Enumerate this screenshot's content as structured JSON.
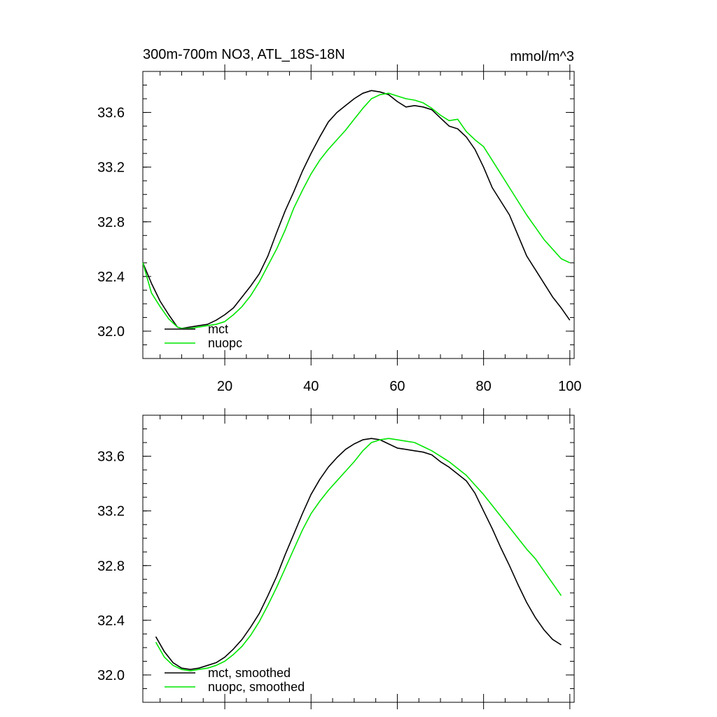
{
  "figure": {
    "title_left": "300m-700m NO3, ATL_18S-18N",
    "title_right": "mmol/m^3"
  },
  "chart_data": [
    {
      "type": "line",
      "title": "300m-700m NO3, ATL_18S-18N",
      "units": "mmol/m^3",
      "xlim": [
        1,
        101
      ],
      "ylim": [
        31.8,
        33.9
      ],
      "xticks": [
        20,
        40,
        60,
        80,
        100
      ],
      "xtick_labels": [
        "20",
        "40",
        "60",
        "80",
        "100"
      ],
      "yticks": [
        32.0,
        32.4,
        32.8,
        33.2,
        33.6
      ],
      "ytick_labels": [
        "32.0",
        "32.4",
        "32.8",
        "33.2",
        "33.6"
      ],
      "legend_position": "bottom-left",
      "series": [
        {
          "name": "mct",
          "color": "#000000",
          "x": [
            1,
            3,
            5,
            7,
            9,
            10,
            12,
            14,
            16,
            18,
            20,
            22,
            24,
            26,
            28,
            30,
            32,
            34,
            36,
            38,
            40,
            42,
            44,
            46,
            48,
            50,
            52,
            54,
            56,
            58,
            60,
            62,
            64,
            66,
            68,
            70,
            72,
            74,
            76,
            78,
            80,
            82,
            84,
            86,
            88,
            90,
            92,
            94,
            96,
            98,
            100
          ],
          "values": [
            32.5,
            32.35,
            32.22,
            32.12,
            32.03,
            32.02,
            32.03,
            32.04,
            32.05,
            32.08,
            32.12,
            32.17,
            32.25,
            32.33,
            32.42,
            32.55,
            32.72,
            32.88,
            33.02,
            33.17,
            33.3,
            33.42,
            33.53,
            33.6,
            33.65,
            33.7,
            33.74,
            33.76,
            33.75,
            33.73,
            33.68,
            33.64,
            33.65,
            33.64,
            33.62,
            33.56,
            33.5,
            33.48,
            33.42,
            33.33,
            33.2,
            33.05,
            32.95,
            32.85,
            32.7,
            32.55,
            32.45,
            32.35,
            32.25,
            32.17,
            32.08
          ]
        },
        {
          "name": "nuopc",
          "color": "#00e600",
          "x": [
            1,
            3,
            5,
            7,
            9,
            10,
            12,
            14,
            16,
            18,
            20,
            22,
            24,
            26,
            28,
            30,
            32,
            34,
            36,
            38,
            40,
            42,
            44,
            46,
            48,
            50,
            52,
            54,
            56,
            58,
            60,
            62,
            64,
            66,
            68,
            70,
            72,
            74,
            76,
            78,
            80,
            82,
            84,
            86,
            88,
            90,
            92,
            94,
            96,
            98,
            100
          ],
          "values": [
            32.5,
            32.28,
            32.18,
            32.09,
            32.03,
            32.02,
            32.02,
            32.03,
            32.04,
            32.05,
            32.07,
            32.12,
            32.18,
            32.26,
            32.36,
            32.48,
            32.6,
            32.74,
            32.9,
            33.03,
            33.15,
            33.25,
            33.33,
            33.4,
            33.47,
            33.55,
            33.63,
            33.7,
            33.73,
            33.74,
            33.72,
            33.7,
            33.69,
            33.67,
            33.63,
            33.58,
            33.54,
            33.55,
            33.46,
            33.4,
            33.35,
            33.25,
            33.15,
            33.05,
            32.95,
            32.85,
            32.76,
            32.67,
            32.6,
            32.53,
            32.5
          ]
        }
      ]
    },
    {
      "type": "line",
      "title": "",
      "xlim": [
        1,
        101
      ],
      "ylim": [
        31.8,
        33.9
      ],
      "xticks": [
        20,
        40,
        60,
        80,
        100
      ],
      "xtick_labels": [
        "",
        "",
        "",
        "",
        ""
      ],
      "yticks": [
        32.0,
        32.4,
        32.8,
        33.2,
        33.6
      ],
      "ytick_labels": [
        "32.0",
        "32.4",
        "32.8",
        "33.2",
        "33.6"
      ],
      "legend_position": "bottom-left",
      "series": [
        {
          "name": "mct, smoothed",
          "color": "#000000",
          "x": [
            4,
            6,
            8,
            10,
            12,
            14,
            16,
            18,
            20,
            22,
            24,
            26,
            28,
            30,
            32,
            34,
            36,
            38,
            40,
            42,
            44,
            46,
            48,
            50,
            52,
            54,
            56,
            58,
            60,
            62,
            64,
            66,
            68,
            70,
            72,
            74,
            76,
            78,
            80,
            82,
            84,
            86,
            88,
            90,
            92,
            94,
            96,
            98
          ],
          "values": [
            32.28,
            32.17,
            32.09,
            32.05,
            32.04,
            32.05,
            32.07,
            32.09,
            32.13,
            32.19,
            32.26,
            32.35,
            32.45,
            32.58,
            32.72,
            32.88,
            33.03,
            33.18,
            33.32,
            33.43,
            33.52,
            33.59,
            33.65,
            33.69,
            33.72,
            33.73,
            33.72,
            33.69,
            33.66,
            33.65,
            33.64,
            33.63,
            33.61,
            33.56,
            33.52,
            33.47,
            33.42,
            33.33,
            33.2,
            33.07,
            32.93,
            32.8,
            32.66,
            32.53,
            32.42,
            32.33,
            32.26,
            32.22
          ]
        },
        {
          "name": "nuopc, smoothed",
          "color": "#00e600",
          "x": [
            4,
            6,
            8,
            10,
            12,
            14,
            16,
            18,
            20,
            22,
            24,
            26,
            28,
            30,
            32,
            34,
            36,
            38,
            40,
            42,
            44,
            46,
            48,
            50,
            52,
            54,
            56,
            58,
            60,
            62,
            64,
            66,
            68,
            70,
            72,
            74,
            76,
            78,
            80,
            82,
            84,
            86,
            88,
            90,
            92,
            94,
            96,
            98
          ],
          "values": [
            32.24,
            32.13,
            32.07,
            32.04,
            32.03,
            32.04,
            32.05,
            32.07,
            32.1,
            32.15,
            32.21,
            32.29,
            32.39,
            32.51,
            32.64,
            32.78,
            32.92,
            33.06,
            33.18,
            33.27,
            33.35,
            33.42,
            33.49,
            33.56,
            33.64,
            33.7,
            33.72,
            33.73,
            33.72,
            33.71,
            33.7,
            33.67,
            33.64,
            33.6,
            33.56,
            33.51,
            33.46,
            33.39,
            33.32,
            33.24,
            33.16,
            33.08,
            33.0,
            32.92,
            32.85,
            32.76,
            32.67,
            32.58
          ]
        }
      ]
    }
  ]
}
